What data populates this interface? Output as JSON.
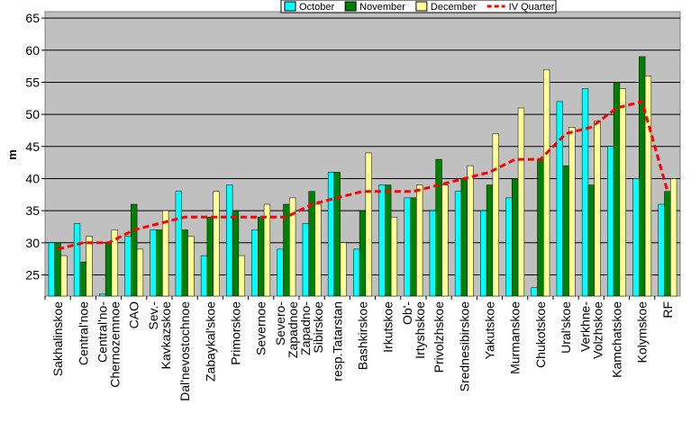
{
  "chart_data": {
    "type": "bar",
    "y_label": "m",
    "categories": [
      "Sakhalinskoe",
      "Central'noe",
      "Central'no-Chernozemnoe",
      "CAO",
      "Sev.-Kavkazskoe",
      "Dal'nevostochnoe",
      "Zabaykal'skoe",
      "Primorskoe",
      "Severnoe",
      "Severo-Zapadnoe",
      "Zapadno-Sibirskoe",
      "resp.Tatarstan",
      "Bashkirskoe",
      "Irkutskoe",
      "Ob'-Irtyshskoe",
      "Privolzhskoe",
      "Srednesibirskoe",
      "Yakutskoe",
      "Murmanskoe",
      "Chukotskoe",
      "Ural'skoe",
      "Verkhne-Volzhskoe",
      "Kamchatskoe",
      "Kolymskoe",
      "RF"
    ],
    "series": [
      {
        "name": "October",
        "type": "bar",
        "color": "#00ffff",
        "values": [
          30,
          33,
          22,
          31,
          32,
          38,
          28,
          39,
          32,
          29,
          33,
          41,
          29,
          39,
          37,
          35,
          38,
          35,
          37,
          23,
          52,
          54,
          45,
          40,
          36
        ]
      },
      {
        "name": "November",
        "type": "bar",
        "color": "#008000",
        "values": [
          30,
          27,
          30,
          36,
          32,
          32,
          34,
          35,
          34,
          36,
          38,
          41,
          35,
          39,
          37,
          43,
          40,
          39,
          40,
          43,
          42,
          39,
          55,
          59,
          38
        ]
      },
      {
        "name": "December",
        "type": "bar",
        "color": "#ffff99",
        "values": [
          28,
          31,
          32,
          29,
          35,
          31,
          38,
          28,
          36,
          37,
          36,
          30,
          44,
          34,
          39,
          39,
          42,
          47,
          51,
          57,
          48,
          49,
          54,
          56,
          40
        ]
      },
      {
        "name": "IV Quarter",
        "type": "line",
        "color": "#ff0000",
        "values": [
          29,
          30,
          30,
          32,
          33,
          34,
          34,
          34,
          34,
          34,
          36,
          37,
          38,
          38,
          38,
          39,
          40,
          41,
          43,
          43,
          47,
          48,
          51,
          52,
          38
        ]
      }
    ],
    "ylim": [
      21.7,
      66
    ],
    "yticks": [
      25,
      30,
      35,
      40,
      45,
      50,
      55,
      60,
      65
    ],
    "grid": true,
    "legend": "top"
  }
}
